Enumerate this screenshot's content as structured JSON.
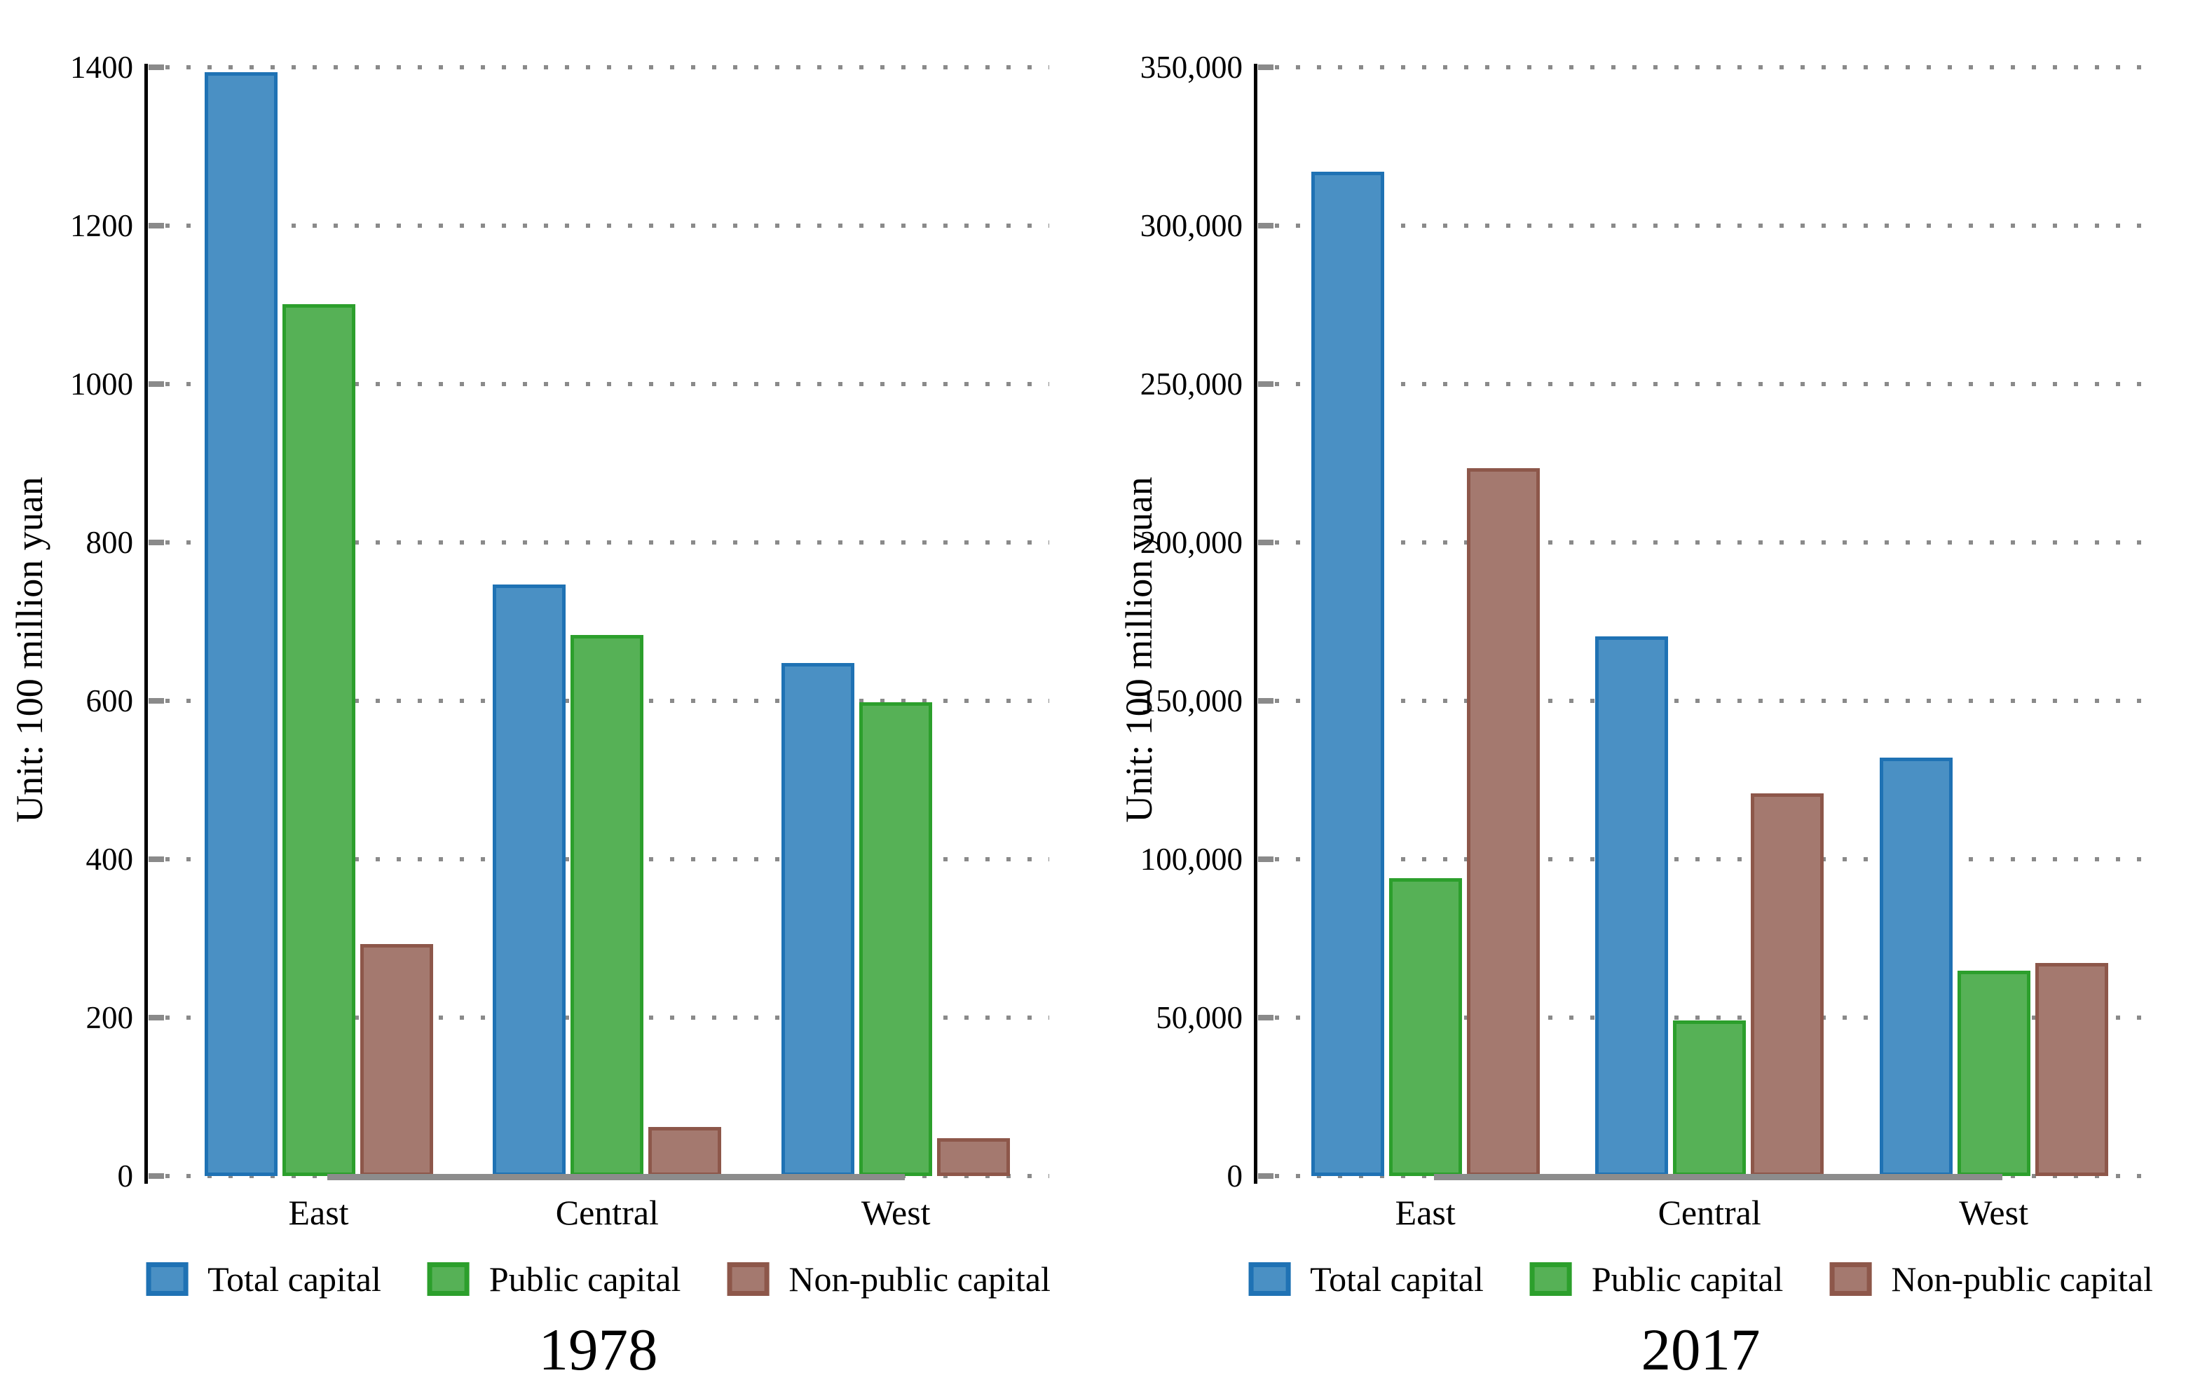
{
  "figure": {
    "description": "Two side-by-side grouped bar charts comparing regional capital stock in China",
    "unit_label": "Unit: 100 million yuan",
    "regions": [
      "East",
      "Central",
      "West"
    ],
    "legend_labels": [
      "Total capital",
      "Public capital",
      "Non-public capital"
    ]
  },
  "colors": {
    "total_fill": "#4a90c4",
    "total_border": "#1f72b4",
    "public_fill": "#56b156",
    "public_border": "#2c9f2c",
    "nonpublic_fill": "#a4796f",
    "nonpublic_border": "#8d574a",
    "grid": "#8a8a8a",
    "axis": "#000000",
    "baseline": "#8c8c8c",
    "text": "#000000"
  },
  "chart_data": [
    {
      "type": "bar",
      "title": "1978",
      "ylabel": "Unit: 100 million yuan",
      "xlabel": "",
      "categories": [
        "East",
        "Central",
        "West"
      ],
      "ylim": [
        0,
        1400
      ],
      "ytick_interval": 200,
      "ytick_labels": [
        "0",
        "200",
        "400",
        "600",
        "800",
        "1000",
        "1200",
        "1400"
      ],
      "grid": "dotted-horizontal",
      "legend_position": "bottom",
      "series": [
        {
          "name": "Total capital",
          "values": [
            1394,
            747,
            648
          ],
          "fill": "#4a90c4",
          "border": "#1f72b4"
        },
        {
          "name": "Public capital",
          "values": [
            1101,
            683,
            598
          ],
          "fill": "#56b156",
          "border": "#2c9f2c"
        },
        {
          "name": "Non-public capital",
          "values": [
            293,
            62,
            48
          ],
          "fill": "#a4796f",
          "border": "#8d574a"
        }
      ]
    },
    {
      "type": "bar",
      "title": "2017",
      "ylabel": "Unit: 100 million yuan",
      "xlabel": "",
      "categories": [
        "East",
        "Central",
        "West"
      ],
      "ylim": [
        0,
        350000
      ],
      "ytick_interval": 50000,
      "ytick_labels": [
        "0",
        "50,000",
        "100,000",
        "150,000",
        "200,000",
        "250,000",
        "300,000",
        "350,000"
      ],
      "grid": "dotted-horizontal",
      "legend_position": "bottom",
      "series": [
        {
          "name": "Total capital",
          "values": [
            317000,
            170400,
            132100
          ],
          "fill": "#4a90c4",
          "border": "#1f72b4"
        },
        {
          "name": "Public capital",
          "values": [
            94000,
            49200,
            64800
          ],
          "fill": "#56b156",
          "border": "#2c9f2c"
        },
        {
          "name": "Non-public capital",
          "values": [
            223500,
            120800,
            67300
          ],
          "fill": "#a4796f",
          "border": "#8d574a"
        }
      ]
    }
  ]
}
